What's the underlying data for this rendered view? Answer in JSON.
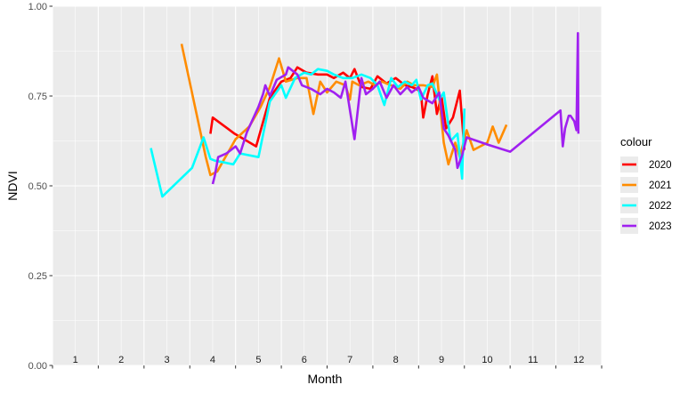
{
  "chart_data": {
    "type": "line",
    "xlabel": "Month",
    "ylabel": "NDVI",
    "ylim": [
      0,
      1
    ],
    "yticks": [
      "0.00",
      "0.25",
      "0.50",
      "0.75",
      "1.00"
    ],
    "ytick_values": [
      0,
      0.25,
      0.5,
      0.75,
      1.0
    ],
    "xlim": [
      1,
      13
    ],
    "month_labels": [
      "1",
      "2",
      "3",
      "4",
      "5",
      "6",
      "7",
      "8",
      "9",
      "10",
      "11",
      "12"
    ],
    "grid": true,
    "legend": {
      "title": "colour",
      "placement": "right"
    },
    "series": [
      {
        "name": "2020",
        "color": "#ff0000",
        "points": [
          [
            4.45,
            0.645
          ],
          [
            4.5,
            0.69
          ],
          [
            4.98,
            0.645
          ],
          [
            5.45,
            0.61
          ],
          [
            5.75,
            0.745
          ],
          [
            6.0,
            0.79
          ],
          [
            6.2,
            0.8
          ],
          [
            6.35,
            0.83
          ],
          [
            6.55,
            0.815
          ],
          [
            6.8,
            0.81
          ],
          [
            7.0,
            0.81
          ],
          [
            7.15,
            0.8
          ],
          [
            7.35,
            0.815
          ],
          [
            7.5,
            0.8
          ],
          [
            7.6,
            0.825
          ],
          [
            7.75,
            0.775
          ],
          [
            7.95,
            0.77
          ],
          [
            8.1,
            0.805
          ],
          [
            8.3,
            0.785
          ],
          [
            8.5,
            0.8
          ],
          [
            8.7,
            0.78
          ],
          [
            8.85,
            0.775
          ],
          [
            8.95,
            0.77
          ],
          [
            9.05,
            0.76
          ],
          [
            9.1,
            0.69
          ],
          [
            9.2,
            0.755
          ],
          [
            9.3,
            0.805
          ],
          [
            9.4,
            0.7
          ],
          [
            9.5,
            0.75
          ],
          [
            9.6,
            0.66
          ],
          [
            9.75,
            0.69
          ],
          [
            9.9,
            0.765
          ],
          [
            10.0,
            0.6
          ]
        ]
      },
      {
        "name": "2021",
        "color": "#ff8c00",
        "points": [
          [
            3.82,
            0.895
          ],
          [
            4.35,
            0.58
          ],
          [
            4.45,
            0.53
          ],
          [
            4.6,
            0.54
          ],
          [
            5.0,
            0.63
          ],
          [
            5.3,
            0.665
          ],
          [
            5.55,
            0.72
          ],
          [
            5.75,
            0.775
          ],
          [
            5.95,
            0.855
          ],
          [
            6.1,
            0.79
          ],
          [
            6.35,
            0.8
          ],
          [
            6.55,
            0.8
          ],
          [
            6.7,
            0.7
          ],
          [
            6.85,
            0.79
          ],
          [
            7.0,
            0.76
          ],
          [
            7.2,
            0.79
          ],
          [
            7.4,
            0.78
          ],
          [
            7.5,
            0.74
          ],
          [
            7.55,
            0.79
          ],
          [
            7.7,
            0.78
          ],
          [
            7.9,
            0.79
          ],
          [
            8.05,
            0.78
          ],
          [
            8.2,
            0.79
          ],
          [
            8.4,
            0.78
          ],
          [
            8.6,
            0.77
          ],
          [
            8.75,
            0.79
          ],
          [
            8.9,
            0.78
          ],
          [
            9.1,
            0.78
          ],
          [
            9.3,
            0.775
          ],
          [
            9.4,
            0.81
          ],
          [
            9.55,
            0.62
          ],
          [
            9.65,
            0.56
          ],
          [
            9.8,
            0.62
          ],
          [
            9.9,
            0.58
          ],
          [
            10.05,
            0.655
          ],
          [
            10.2,
            0.6
          ],
          [
            10.5,
            0.62
          ],
          [
            10.62,
            0.665
          ],
          [
            10.75,
            0.62
          ],
          [
            10.92,
            0.67
          ]
        ]
      },
      {
        "name": "2022",
        "color": "#00ffff",
        "points": [
          [
            3.15,
            0.605
          ],
          [
            3.4,
            0.47
          ],
          [
            4.05,
            0.55
          ],
          [
            4.3,
            0.635
          ],
          [
            4.45,
            0.575
          ],
          [
            4.55,
            0.57
          ],
          [
            4.75,
            0.565
          ],
          [
            4.95,
            0.56
          ],
          [
            5.1,
            0.59
          ],
          [
            5.5,
            0.58
          ],
          [
            5.75,
            0.735
          ],
          [
            6.0,
            0.78
          ],
          [
            6.1,
            0.745
          ],
          [
            6.3,
            0.8
          ],
          [
            6.5,
            0.815
          ],
          [
            6.65,
            0.81
          ],
          [
            6.8,
            0.825
          ],
          [
            7.0,
            0.82
          ],
          [
            7.15,
            0.81
          ],
          [
            7.35,
            0.8
          ],
          [
            7.55,
            0.8
          ],
          [
            7.75,
            0.81
          ],
          [
            7.95,
            0.8
          ],
          [
            8.1,
            0.78
          ],
          [
            8.25,
            0.725
          ],
          [
            8.4,
            0.8
          ],
          [
            8.55,
            0.775
          ],
          [
            8.7,
            0.79
          ],
          [
            8.85,
            0.78
          ],
          [
            8.95,
            0.795
          ],
          [
            9.05,
            0.74
          ],
          [
            9.2,
            0.78
          ],
          [
            9.3,
            0.785
          ],
          [
            9.45,
            0.74
          ],
          [
            9.55,
            0.76
          ],
          [
            9.7,
            0.625
          ],
          [
            9.85,
            0.645
          ],
          [
            9.95,
            0.52
          ],
          [
            10.0,
            0.715
          ]
        ]
      },
      {
        "name": "2023",
        "color": "#a020f0",
        "points": [
          [
            4.5,
            0.505
          ],
          [
            4.55,
            0.53
          ],
          [
            4.62,
            0.58
          ],
          [
            4.8,
            0.59
          ],
          [
            5.0,
            0.61
          ],
          [
            5.1,
            0.59
          ],
          [
            5.25,
            0.65
          ],
          [
            5.5,
            0.72
          ],
          [
            5.6,
            0.755
          ],
          [
            5.65,
            0.78
          ],
          [
            5.75,
            0.75
          ],
          [
            5.9,
            0.795
          ],
          [
            6.1,
            0.81
          ],
          [
            6.15,
            0.83
          ],
          [
            6.35,
            0.81
          ],
          [
            6.45,
            0.78
          ],
          [
            6.65,
            0.77
          ],
          [
            6.85,
            0.755
          ],
          [
            7.0,
            0.77
          ],
          [
            7.15,
            0.76
          ],
          [
            7.3,
            0.745
          ],
          [
            7.4,
            0.79
          ],
          [
            7.6,
            0.63
          ],
          [
            7.75,
            0.8
          ],
          [
            7.85,
            0.755
          ],
          [
            8.0,
            0.77
          ],
          [
            8.15,
            0.79
          ],
          [
            8.3,
            0.745
          ],
          [
            8.45,
            0.78
          ],
          [
            8.6,
            0.755
          ],
          [
            8.75,
            0.775
          ],
          [
            8.85,
            0.76
          ],
          [
            9.0,
            0.775
          ],
          [
            9.1,
            0.745
          ],
          [
            9.3,
            0.73
          ],
          [
            9.45,
            0.76
          ],
          [
            9.55,
            0.66
          ],
          [
            9.65,
            0.64
          ],
          [
            9.8,
            0.6
          ],
          [
            9.85,
            0.55
          ],
          [
            9.95,
            0.585
          ],
          [
            10.05,
            0.635
          ],
          [
            10.5,
            0.615
          ],
          [
            11.0,
            0.595
          ],
          [
            12.1,
            0.71
          ],
          [
            12.15,
            0.61
          ],
          [
            12.2,
            0.66
          ],
          [
            12.28,
            0.695
          ],
          [
            12.32,
            0.695
          ],
          [
            12.4,
            0.68
          ],
          [
            12.45,
            0.655
          ],
          [
            12.48,
            0.925
          ],
          [
            12.49,
            0.645
          ]
        ]
      }
    ]
  }
}
